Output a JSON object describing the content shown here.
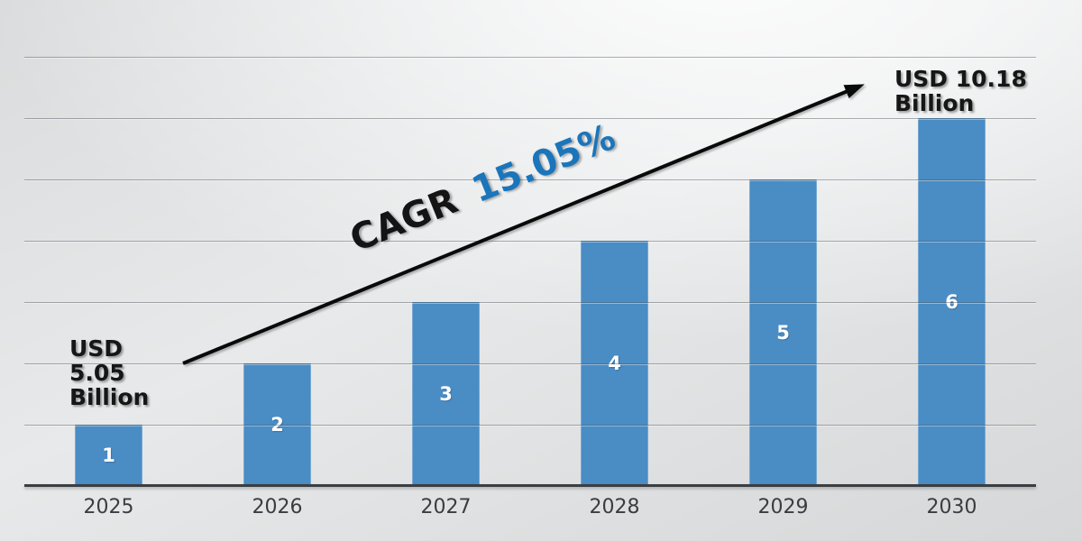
{
  "chart_data": {
    "type": "bar",
    "title": "",
    "xlabel": "",
    "ylabel": "",
    "categories": [
      "2025",
      "2026",
      "2027",
      "2028",
      "2029",
      "2030"
    ],
    "values": [
      1,
      2,
      3,
      4,
      5,
      6
    ],
    "bar_labels": [
      "1",
      "2",
      "3",
      "4",
      "5",
      "6"
    ],
    "ylim": [
      0,
      7
    ],
    "grid": "horizontal gridlines every 1 unit, drawn over bars",
    "legend": "none",
    "annotations": {
      "start_label": "USD\n5.05\nBillion",
      "end_label": "USD 10.18\nBillion",
      "cagr_prefix": "CAGR ",
      "cagr_value": "15.05%",
      "trend_arrow": "straight arrow rising from above 2025 bar to USD 10.18 Billion label"
    },
    "colors": {
      "bar": "#4a8cc4",
      "bar_label": "#ffffff",
      "cagr_prefix": "#141414",
      "cagr_value": "#1b75bb",
      "arrow": "#0a0a0a",
      "axis_tick_label": "#3a3d40",
      "annotation_text": "#161616"
    }
  }
}
